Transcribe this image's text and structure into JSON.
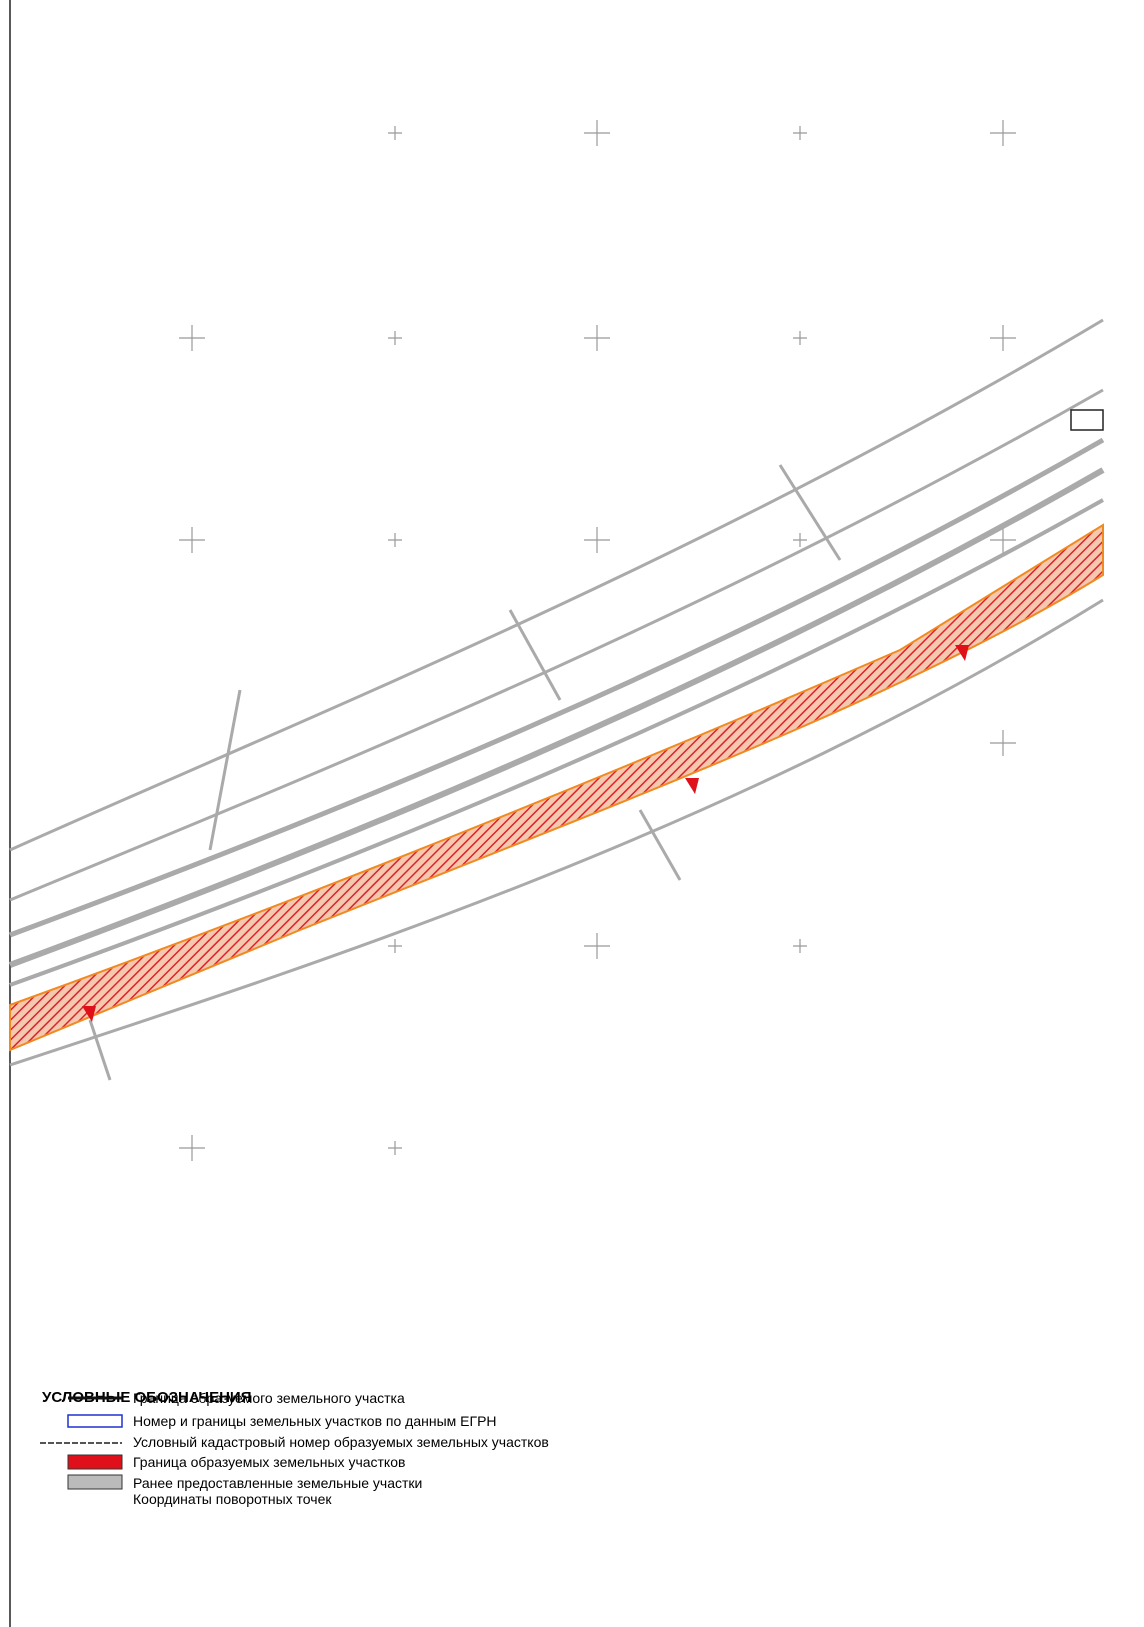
{
  "legend": {
    "title": "УСЛОВНЫЕ ОБОЗНАЧЕНИЯ",
    "items": [
      "Граница образуемого земельного участка",
      "Номер и границы земельных участков по данным ЕГРН",
      "Условный кадастровый номер образуемых земельных участков",
      "Граница образуемых земельных участков",
      "Ранее предоставленные земельные участки",
      "Координаты поворотных точек"
    ]
  }
}
